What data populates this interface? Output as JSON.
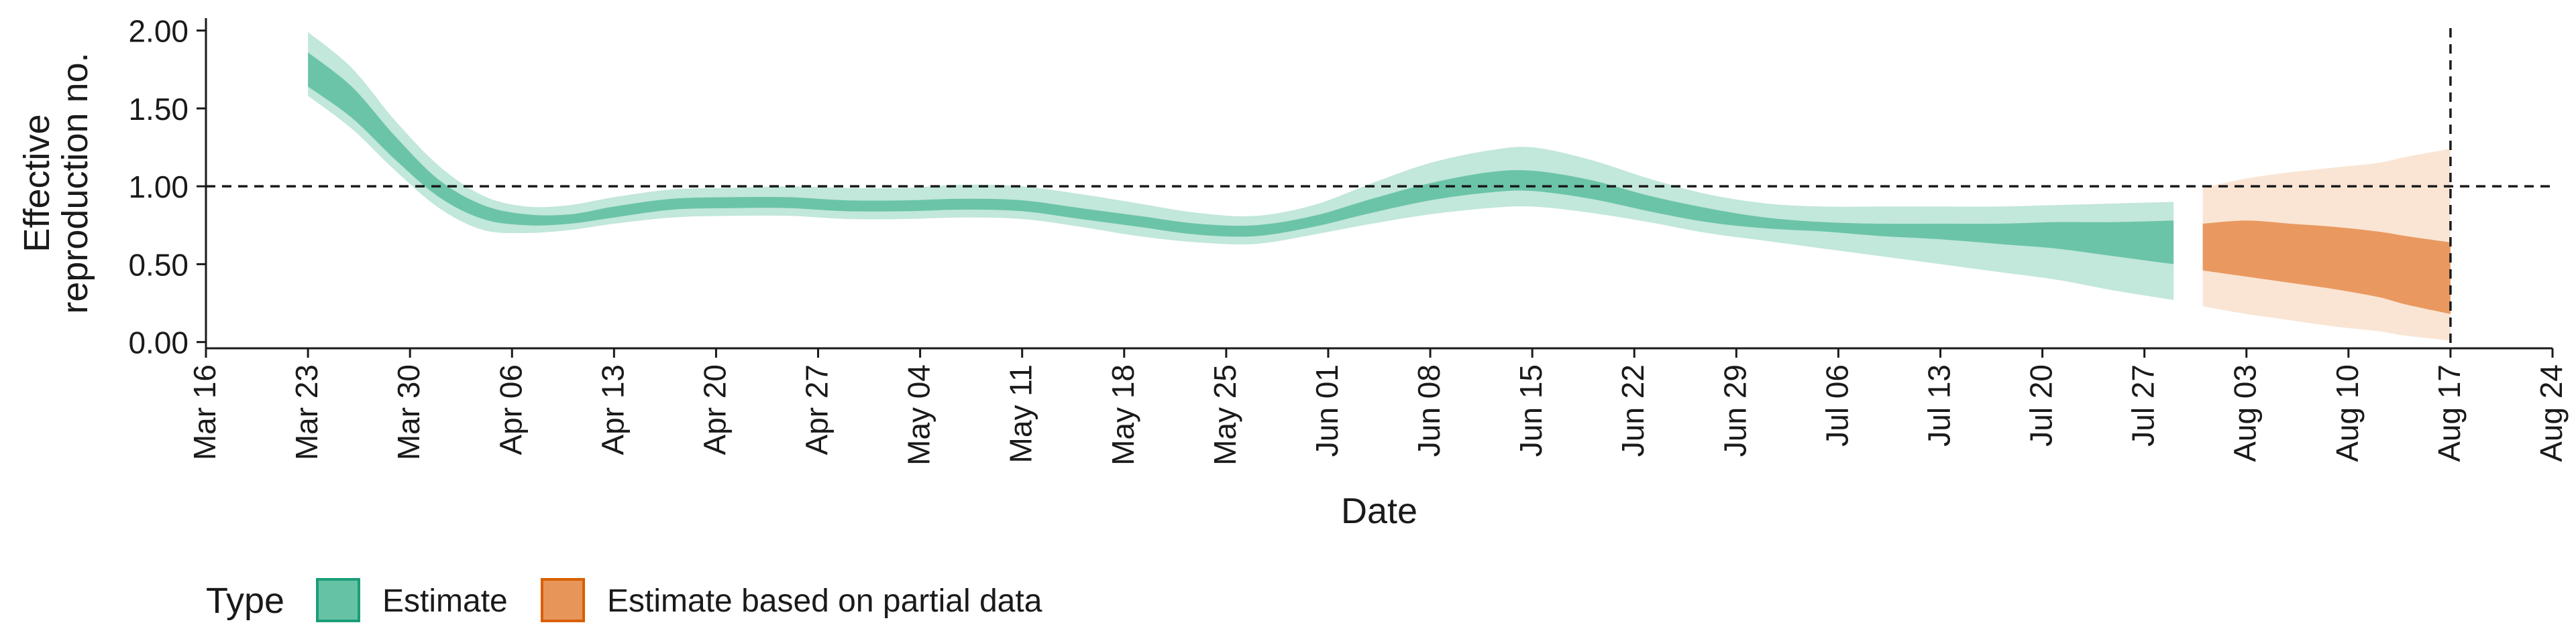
{
  "chart_data": {
    "type": "area",
    "title": "",
    "xlabel": "Date",
    "ylabel_lines": [
      "Effective",
      "reproduction no."
    ],
    "x_range": [
      "2020-03-16",
      "2020-08-24"
    ],
    "ylim": [
      -0.04,
      2.08
    ],
    "x_ticks": [
      "Mar 16",
      "Mar 23",
      "Mar 30",
      "Apr 06",
      "Apr 13",
      "Apr 20",
      "Apr 27",
      "May 04",
      "May 11",
      "May 18",
      "May 25",
      "Jun 01",
      "Jun 08",
      "Jun 15",
      "Jun 22",
      "Jun 29",
      "Jul 06",
      "Jul 13",
      "Jul 20",
      "Jul 27",
      "Aug 03",
      "Aug 10",
      "Aug 17",
      "Aug 24"
    ],
    "x_tick_dates": [
      "2020-03-16",
      "2020-03-23",
      "2020-03-30",
      "2020-04-06",
      "2020-04-13",
      "2020-04-20",
      "2020-04-27",
      "2020-05-04",
      "2020-05-11",
      "2020-05-18",
      "2020-05-25",
      "2020-06-01",
      "2020-06-08",
      "2020-06-15",
      "2020-06-22",
      "2020-06-29",
      "2020-07-06",
      "2020-07-13",
      "2020-07-20",
      "2020-07-27",
      "2020-08-03",
      "2020-08-10",
      "2020-08-17",
      "2020-08-24"
    ],
    "y_ticks": [
      "0.00",
      "0.50",
      "1.00",
      "1.50",
      "2.00"
    ],
    "y_tick_values": [
      0,
      0.5,
      1,
      1.5,
      2
    ],
    "reference_lines": {
      "y": 1.0,
      "x_date": "2020-08-17",
      "style": "dashed"
    },
    "grid": false,
    "legend": {
      "title": "Type",
      "placement": "bottom-left",
      "entries": [
        {
          "label": "Estimate",
          "fill": "#66c2a5",
          "stroke": "#1b9e77"
        },
        {
          "label": "Estimate based on partial data",
          "fill": "#e8955a",
          "stroke": "#d95f02"
        }
      ]
    },
    "series": [
      {
        "type_key": "estimate",
        "color": "#66c2a5",
        "outer_color": "#66c2a5",
        "x": [
          "2020-03-23",
          "2020-03-26",
          "2020-03-29",
          "2020-04-01",
          "2020-04-04",
          "2020-04-07",
          "2020-04-10",
          "2020-04-13",
          "2020-04-17",
          "2020-04-21",
          "2020-04-25",
          "2020-04-29",
          "2020-05-03",
          "2020-05-07",
          "2020-05-11",
          "2020-05-15",
          "2020-05-19",
          "2020-05-23",
          "2020-05-27",
          "2020-05-31",
          "2020-06-04",
          "2020-06-08",
          "2020-06-12",
          "2020-06-15",
          "2020-06-19",
          "2020-06-23",
          "2020-06-27",
          "2020-07-01",
          "2020-07-05",
          "2020-07-09",
          "2020-07-13",
          "2020-07-17",
          "2020-07-21",
          "2020-07-25",
          "2020-07-29"
        ],
        "outer_lower": [
          1.58,
          1.37,
          1.1,
          0.86,
          0.72,
          0.7,
          0.72,
          0.76,
          0.8,
          0.81,
          0.81,
          0.79,
          0.79,
          0.8,
          0.79,
          0.74,
          0.68,
          0.64,
          0.63,
          0.69,
          0.76,
          0.82,
          0.86,
          0.87,
          0.83,
          0.77,
          0.7,
          0.65,
          0.6,
          0.55,
          0.5,
          0.45,
          0.4,
          0.33,
          0.27
        ],
        "inner_lower": [
          1.64,
          1.44,
          1.17,
          0.93,
          0.79,
          0.75,
          0.76,
          0.8,
          0.85,
          0.86,
          0.86,
          0.84,
          0.84,
          0.85,
          0.84,
          0.79,
          0.74,
          0.69,
          0.68,
          0.74,
          0.83,
          0.91,
          0.96,
          0.97,
          0.92,
          0.84,
          0.77,
          0.73,
          0.71,
          0.68,
          0.66,
          0.63,
          0.6,
          0.55,
          0.5
        ],
        "inner_upper": [
          1.86,
          1.64,
          1.32,
          1.04,
          0.88,
          0.82,
          0.82,
          0.87,
          0.92,
          0.93,
          0.93,
          0.91,
          0.91,
          0.92,
          0.91,
          0.86,
          0.81,
          0.76,
          0.75,
          0.81,
          0.92,
          1.02,
          1.09,
          1.1,
          1.04,
          0.94,
          0.86,
          0.8,
          0.77,
          0.76,
          0.76,
          0.76,
          0.77,
          0.77,
          0.78
        ],
        "outer_upper": [
          1.99,
          1.76,
          1.42,
          1.13,
          0.94,
          0.87,
          0.88,
          0.93,
          0.98,
          0.99,
          1.0,
          0.99,
          0.99,
          1.01,
          1.0,
          0.95,
          0.89,
          0.83,
          0.81,
          0.88,
          1.02,
          1.15,
          1.23,
          1.25,
          1.17,
          1.05,
          0.95,
          0.89,
          0.87,
          0.87,
          0.87,
          0.87,
          0.88,
          0.89,
          0.9
        ]
      },
      {
        "type_key": "partial",
        "color": "#e8955a",
        "outer_color": "#f5cfb1",
        "x": [
          "2020-07-31",
          "2020-08-03",
          "2020-08-06",
          "2020-08-09",
          "2020-08-12",
          "2020-08-14",
          "2020-08-17"
        ],
        "outer_lower": [
          0.23,
          0.18,
          0.14,
          0.1,
          0.07,
          0.04,
          0.01
        ],
        "inner_lower": [
          0.46,
          0.42,
          0.38,
          0.34,
          0.29,
          0.24,
          0.18
        ],
        "inner_upper": [
          0.76,
          0.78,
          0.76,
          0.74,
          0.71,
          0.68,
          0.64
        ],
        "outer_upper": [
          0.99,
          1.05,
          1.09,
          1.12,
          1.15,
          1.19,
          1.24
        ]
      }
    ]
  }
}
